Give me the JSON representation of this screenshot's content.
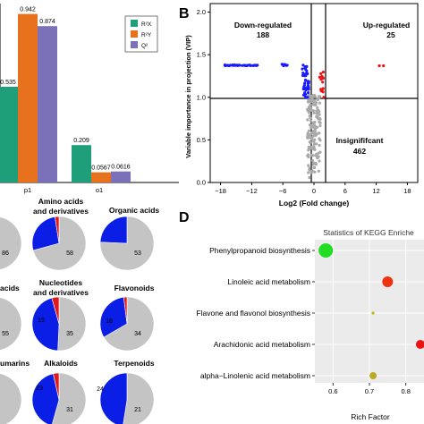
{
  "panel_labels": {
    "b": "B",
    "d": "D"
  },
  "chart_data": [
    {
      "id": "panel-a-bar",
      "type": "bar",
      "categories": [
        "p1",
        "o1"
      ],
      "series": [
        {
          "name": "R²X",
          "values": [
            0.535,
            0.209
          ],
          "color": "#1f9e7a"
        },
        {
          "name": "R²Y",
          "values": [
            0.942,
            0.0567
          ],
          "color": "#e8711d"
        },
        {
          "name": "Q²",
          "values": [
            0.874,
            0.0616
          ],
          "color": "#7b71b8"
        }
      ],
      "value_labels": [
        "0.535",
        "0.942",
        "0.874",
        "0.209",
        "0.0567",
        "0.0616"
      ],
      "legend": [
        "R²X",
        "R²Y",
        "Q²"
      ],
      "legend_position": "top-right",
      "ylim": [
        0,
        1.0
      ]
    },
    {
      "id": "panel-b-volcano",
      "type": "scatter",
      "xlabel": "Log2 (Fold change)",
      "ylabel": "Variable importance in projection (VIP)",
      "xticks": [
        "−18",
        "−12",
        "−6",
        "0",
        "6",
        "12",
        "18"
      ],
      "yticks": [
        "0.0",
        "0.5",
        "1.0",
        "1.5",
        "2.0"
      ],
      "xlim": [
        -20,
        20
      ],
      "ylim": [
        0,
        2.1
      ],
      "groups": [
        {
          "name": "Down-regulated",
          "count": "188",
          "color": "#1a1aff"
        },
        {
          "name": "Up-regulated",
          "count": "25",
          "color": "#ee1111"
        },
        {
          "name": "Insignififcant",
          "count": "462",
          "color": "#a9a9a9"
        }
      ],
      "threshold_lines": {
        "vip": 1.0,
        "log2fc": [
          -1,
          1
        ]
      }
    },
    {
      "id": "panel-c-pies",
      "type": "pie",
      "colors": {
        "down": "#0a1ee6",
        "up": "#e01a1a",
        "insignificant": "#c4c4c4"
      },
      "pies": [
        {
          "title": "",
          "down": 5,
          "up": 0,
          "insignificant": 86,
          "label": "86"
        },
        {
          "title": "Amino acids and derivatives",
          "down": 22,
          "up": 2,
          "insignificant": 58,
          "label": "58"
        },
        {
          "title": "Organic acids",
          "down": 17,
          "up": 0,
          "insignificant": 53,
          "label": "53"
        },
        {
          "title": "acids",
          "down": 8,
          "up": 0,
          "insignificant": 55,
          "label": "55"
        },
        {
          "title": "Nucleotides and derivatives",
          "down": 31,
          "up": 3,
          "insignificant": 35,
          "label": "35"
        },
        {
          "title": "Flavonoids",
          "down": 16,
          "up": 1,
          "insignificant": 34,
          "label": "34"
        },
        {
          "title": "umarins",
          "down": 10,
          "up": 0,
          "insignificant": 50,
          "label": ""
        },
        {
          "title": "Alkaloids",
          "down": 24,
          "up": 2,
          "insignificant": 31,
          "label": "31"
        },
        {
          "title": "Terpenoids",
          "down": 19,
          "up": 0,
          "insignificant": 21,
          "label": "21"
        }
      ],
      "inner_labels": [
        "15",
        "23",
        "18",
        "24"
      ]
    },
    {
      "id": "panel-d-kegg",
      "type": "scatter",
      "title": "Statistics of KEGG Enriche",
      "xlabel": "Rich Factor",
      "xticks": [
        "0.6",
        "0.7",
        "0.8"
      ],
      "xlim": [
        0.55,
        0.85
      ],
      "pathways": [
        {
          "name": "Phenylpropanoid biosynthesis",
          "rich_factor": 0.58,
          "size": 8,
          "color": "#22dd22"
        },
        {
          "name": "Linoleic acid metabolism",
          "rich_factor": 0.75,
          "size": 6,
          "color": "#ee3311"
        },
        {
          "name": "Flavone and flavonol biosynthesis",
          "rich_factor": 0.71,
          "size": 1.6,
          "color": "#bbbb11"
        },
        {
          "name": "Arachidonic acid metabolism",
          "rich_factor": 0.84,
          "size": 5,
          "color": "#ee1111"
        },
        {
          "name": "alpha−Linolenic acid metabolism",
          "rich_factor": 0.71,
          "size": 4,
          "color": "#bbaa22"
        }
      ]
    }
  ]
}
